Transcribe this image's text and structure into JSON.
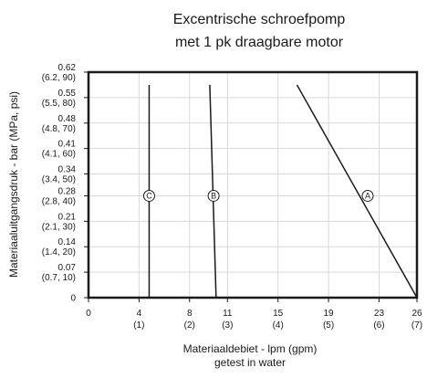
{
  "chart_data": {
    "type": "line",
    "title": [
      "Excentrische schroefpomp",
      "met 1 pk draagbare motor"
    ],
    "xlabel": [
      "Materiaaldebiet - lpm (gpm)",
      "getest in water"
    ],
    "ylabel": "Materiaaluitgangsdruk - bar (MPa, psi)",
    "xlim": [
      0,
      26
    ],
    "ylim": [
      0,
      62
    ],
    "grid": true,
    "x_ticks": [
      {
        "value": 0,
        "label": "0",
        "sub": ""
      },
      {
        "value": 4,
        "label": "4",
        "sub": "(1)"
      },
      {
        "value": 8,
        "label": "8",
        "sub": "(2)"
      },
      {
        "value": 11,
        "label": "11",
        "sub": "(3)"
      },
      {
        "value": 15,
        "label": "15",
        "sub": "(4)"
      },
      {
        "value": 19,
        "label": "19",
        "sub": "(5)"
      },
      {
        "value": 23,
        "label": "23",
        "sub": "(6)"
      },
      {
        "value": 26,
        "label": "26",
        "sub": "(7)"
      }
    ],
    "y_ticks": [
      {
        "value": 0,
        "label": "0",
        "sub": ""
      },
      {
        "value": 7,
        "label": "0.07",
        "sub": "(0.7, 10)"
      },
      {
        "value": 14,
        "label": "0.14",
        "sub": "(1.4, 20)"
      },
      {
        "value": 21,
        "label": "0.21",
        "sub": "(2.1, 30)"
      },
      {
        "value": 28,
        "label": "0.28",
        "sub": "(2.8, 40)"
      },
      {
        "value": 34,
        "label": "0.34",
        "sub": "(3.4, 50)"
      },
      {
        "value": 41,
        "label": "0.41",
        "sub": "(4.1, 60)"
      },
      {
        "value": 48,
        "label": "0.48",
        "sub": "(4.8, 70)"
      },
      {
        "value": 55,
        "label": "0.55",
        "sub": "(5.5, 80)"
      },
      {
        "value": 62,
        "label": "0.62",
        "sub": "(6.2, 90)"
      }
    ],
    "series": [
      {
        "name": "A",
        "x": [
          16.5,
          26.0
        ],
        "y": [
          58.5,
          0
        ],
        "marker_at": [
          22.1,
          28
        ]
      },
      {
        "name": "B",
        "x": [
          9.6,
          10.1
        ],
        "y": [
          58.5,
          0
        ],
        "marker_at": [
          9.9,
          28
        ]
      },
      {
        "name": "C",
        "x": [
          4.8,
          4.8
        ],
        "y": [
          58.5,
          0
        ],
        "marker_at": [
          4.8,
          28
        ]
      }
    ],
    "colors": {
      "line": "#1a1a1a",
      "grid": "#d9d9d9",
      "frame": "#1a1a1a"
    }
  }
}
